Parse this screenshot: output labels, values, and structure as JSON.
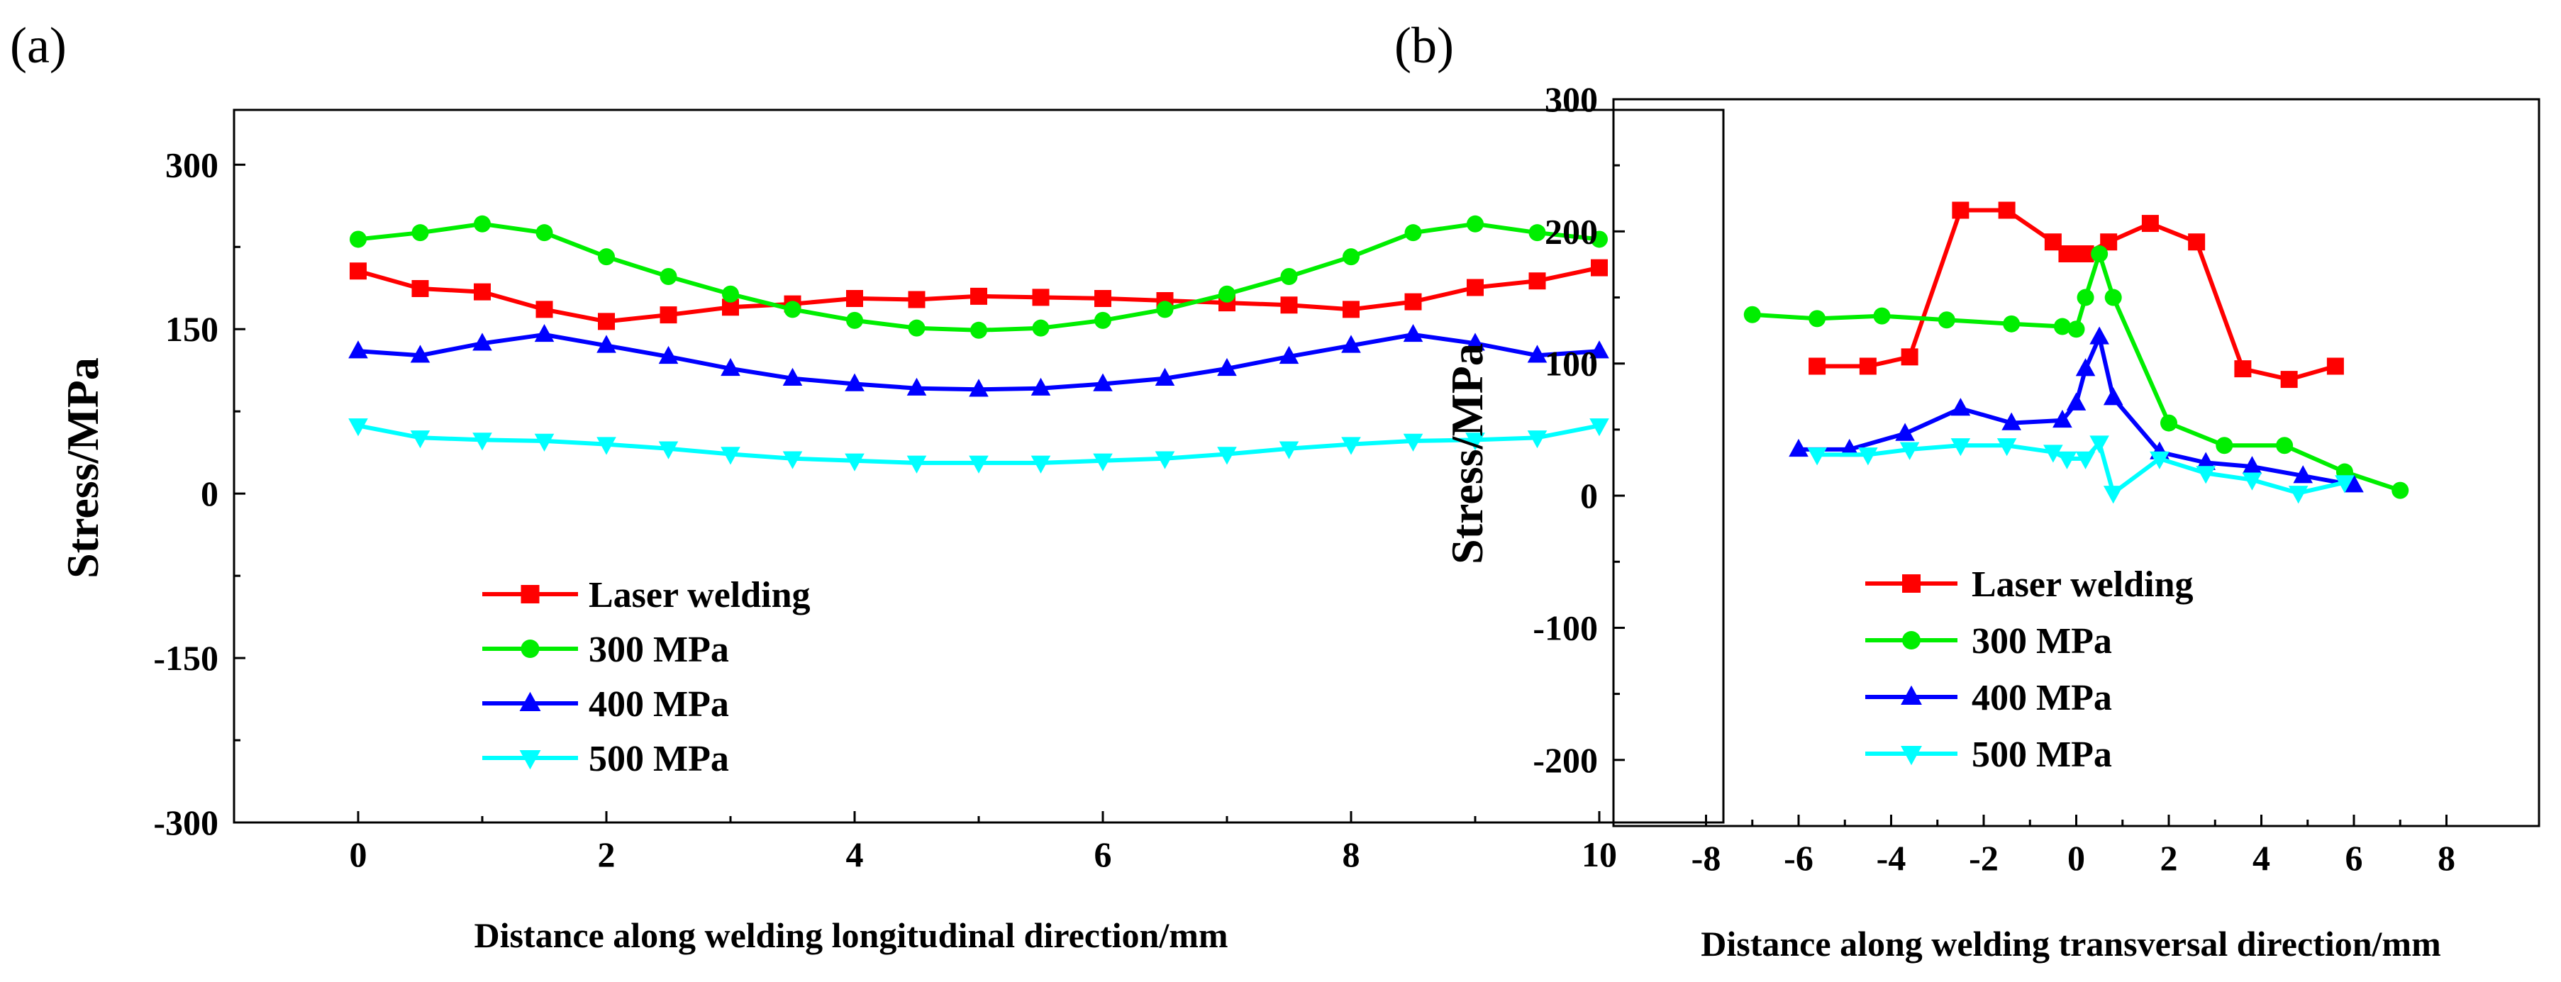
{
  "chart_data": [
    {
      "type": "line",
      "panel_label": "(a)",
      "xlabel": "Distance along welding longitudinal direction/mm",
      "ylabel": "Stress/MPa",
      "xlim": [
        -1,
        11
      ],
      "ylim": [
        -300,
        350
      ],
      "xticks": [
        0,
        2,
        4,
        6,
        8,
        10
      ],
      "yticks": [
        300,
        150,
        0,
        -150,
        -300
      ],
      "grid": false,
      "legend_position": "lower-center",
      "series": [
        {
          "name": "Laser welding",
          "color": "#ff0000",
          "marker": "square",
          "x": [
            0,
            0.5,
            1,
            1.5,
            2,
            2.5,
            3,
            3.5,
            4,
            4.5,
            5,
            5.5,
            6,
            6.5,
            7,
            7.5,
            8,
            8.5,
            9,
            9.5,
            10
          ],
          "y": [
            203,
            187,
            184,
            168,
            157,
            163,
            170,
            173,
            178,
            177,
            180,
            179,
            178,
            176,
            174,
            172,
            168,
            175,
            188,
            194,
            206
          ]
        },
        {
          "name": "300 MPa",
          "color": "#00ee00",
          "marker": "circle",
          "x": [
            0,
            0.5,
            1,
            1.5,
            2,
            2.5,
            3,
            3.5,
            4,
            4.5,
            5,
            5.5,
            6,
            6.5,
            7,
            7.5,
            8,
            8.5,
            9,
            9.5,
            10
          ],
          "y": [
            232,
            238,
            246,
            238,
            216,
            198,
            182,
            168,
            158,
            151,
            149,
            151,
            158,
            168,
            182,
            198,
            216,
            238,
            246,
            238,
            232
          ]
        },
        {
          "name": "400 MPa",
          "color": "#0000ff",
          "marker": "triangle-up",
          "x": [
            0,
            0.5,
            1,
            1.5,
            2,
            2.5,
            3,
            3.5,
            4,
            4.5,
            5,
            5.5,
            6,
            6.5,
            7,
            7.5,
            8,
            8.5,
            9,
            9.5,
            10
          ],
          "y": [
            130,
            126,
            137,
            145,
            135,
            125,
            114,
            105,
            100,
            96,
            95,
            96,
            100,
            105,
            114,
            125,
            135,
            145,
            137,
            126,
            130
          ]
        },
        {
          "name": "500 MPa",
          "color": "#00ffff",
          "marker": "triangle-down",
          "x": [
            0,
            0.5,
            1,
            1.5,
            2,
            2.5,
            3,
            3.5,
            4,
            4.5,
            5,
            5.5,
            6,
            6.5,
            7,
            7.5,
            8,
            8.5,
            9,
            9.5,
            10
          ],
          "y": [
            62,
            51,
            49,
            48,
            45,
            41,
            36,
            32,
            30,
            28,
            28,
            28,
            30,
            32,
            36,
            41,
            45,
            48,
            49,
            51,
            62
          ]
        }
      ]
    },
    {
      "type": "line",
      "panel_label": "(b)",
      "xlabel": "Distance along welding transversal direction/mm",
      "ylabel": "Stress/MPa",
      "xlim": [
        -10,
        10
      ],
      "ylim": [
        -250,
        300
      ],
      "xticks": [
        -8,
        -6,
        -4,
        -2,
        0,
        2,
        4,
        6,
        8
      ],
      "yticks": [
        300,
        200,
        100,
        0,
        -100,
        -200
      ],
      "grid": false,
      "legend_position": "lower-left",
      "series": [
        {
          "name": "Laser welding",
          "color": "#ff0000",
          "marker": "square",
          "x": [
            -5.6,
            -4.5,
            -3.6,
            -2.5,
            -1.5,
            -0.5,
            -0.2,
            0,
            0.2,
            0.7,
            1.6,
            2.6,
            3.6,
            4.6,
            5.6
          ],
          "y": [
            98,
            98,
            105,
            216,
            216,
            192,
            183,
            183,
            183,
            192,
            206,
            192,
            96,
            88,
            98
          ]
        },
        {
          "name": "300 MPa",
          "color": "#00ee00",
          "marker": "circle",
          "x": [
            -7,
            -5.6,
            -4.2,
            -2.8,
            -1.4,
            -0.3,
            0,
            0.2,
            0.5,
            0.8,
            2,
            3.2,
            4.5,
            5.8,
            7
          ],
          "y": [
            137,
            134,
            136,
            133,
            130,
            128,
            126,
            150,
            183,
            150,
            55,
            38,
            38,
            18,
            4
          ]
        },
        {
          "name": "400 MPa",
          "color": "#0000ff",
          "marker": "triangle-up",
          "x": [
            -6,
            -4.9,
            -3.7,
            -2.5,
            -1.4,
            -0.3,
            0,
            0.2,
            0.5,
            0.8,
            1.8,
            2.8,
            3.8,
            4.9,
            6
          ],
          "y": [
            35,
            35,
            47,
            66,
            55,
            57,
            70,
            96,
            120,
            74,
            33,
            25,
            22,
            15,
            8
          ]
        },
        {
          "name": "500 MPa",
          "color": "#00ffff",
          "marker": "triangle-down",
          "x": [
            -5.6,
            -4.5,
            -3.6,
            -2.5,
            -1.5,
            -0.5,
            -0.2,
            0.2,
            0.5,
            0.8,
            1.8,
            2.8,
            3.8,
            4.8,
            5.8
          ],
          "y": [
            31,
            31,
            35,
            38,
            38,
            33,
            28,
            28,
            40,
            2,
            28,
            17,
            12,
            2,
            10
          ]
        }
      ]
    }
  ]
}
